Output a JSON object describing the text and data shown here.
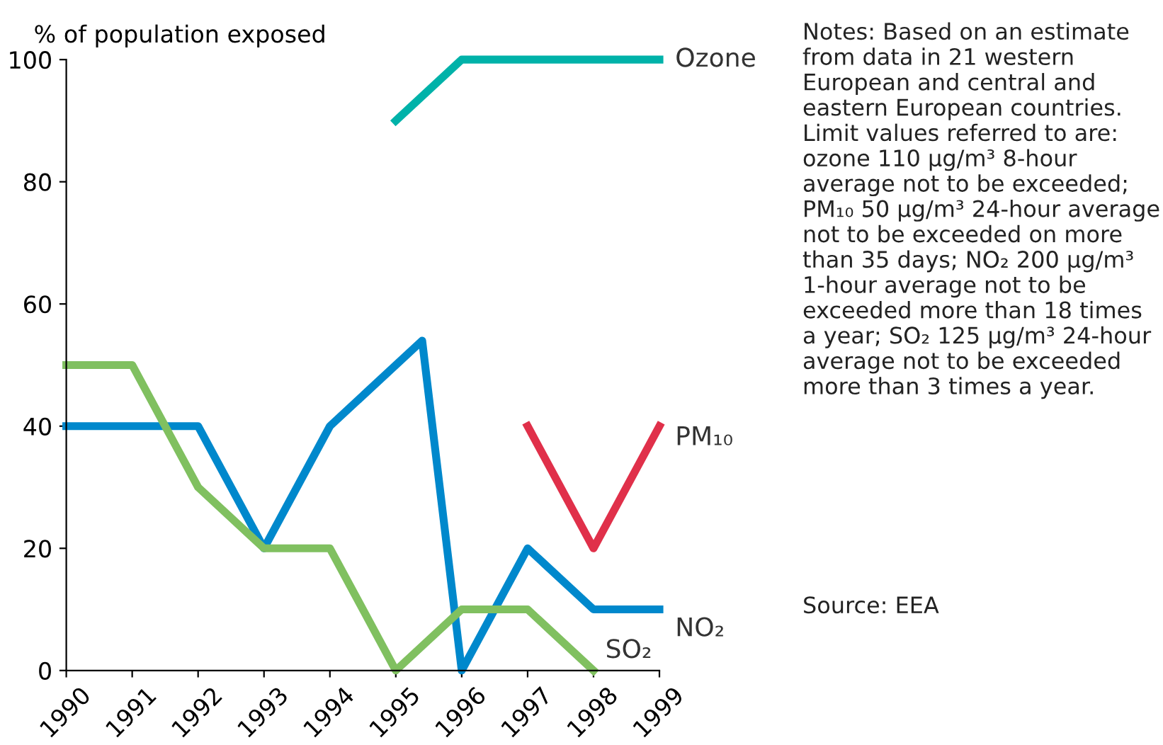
{
  "chart_data": {
    "type": "line",
    "ylabel": "% of population exposed",
    "xlim": [
      1990,
      1999
    ],
    "xticks": [
      1990,
      1991,
      1992,
      1993,
      1994,
      1995,
      1996,
      1997,
      1998,
      1999
    ],
    "ylim": [
      0,
      100
    ],
    "yticks": [
      0,
      20,
      40,
      60,
      80,
      100
    ],
    "grid": false,
    "legend": false,
    "marker": "none",
    "line_style": "solid",
    "series": [
      {
        "name": "Ozone",
        "color": "#00b2a9",
        "x": [
          1995,
          1996,
          1997,
          1998,
          1999
        ],
        "values": [
          90,
          100,
          100,
          100,
          100
        ]
      },
      {
        "name": "PM₁₀",
        "color": "#e0304a",
        "x": [
          1997,
          1998,
          1999
        ],
        "values": [
          40,
          20,
          40
        ]
      },
      {
        "name": "NO₂",
        "color": "#0088cc",
        "x": [
          1990,
          1991,
          1992,
          1993,
          1994,
          1995.4,
          1996,
          1997,
          1998,
          1999
        ],
        "values": [
          40,
          40,
          40,
          20,
          40,
          54,
          0,
          20,
          10,
          10
        ]
      },
      {
        "name": "SO₂",
        "color": "#80c060",
        "x": [
          1990,
          1991,
          1992,
          1993,
          1994,
          1995,
          1996,
          1997,
          1998
        ],
        "values": [
          50,
          50,
          30,
          20,
          20,
          0,
          10,
          10,
          0
        ]
      }
    ],
    "annotations": [
      "Notes: Based on an estimate from data in 21 western European and central and eastern European countries. Limit values referred to are: ozone 110 µg/m³ 8-hour average not to be exceeded; PM₁₀ 50 µg/m³ 24-hour average not to be exceeded on more than 35 days; NO₂ 200 µg/m³ 1-hour average not to be exceeded more than 18 times a year; SO₂ 125 µg/m³ 24-hour average not to be exceeded more than 3 times a year.",
      "Source: EEA"
    ]
  }
}
